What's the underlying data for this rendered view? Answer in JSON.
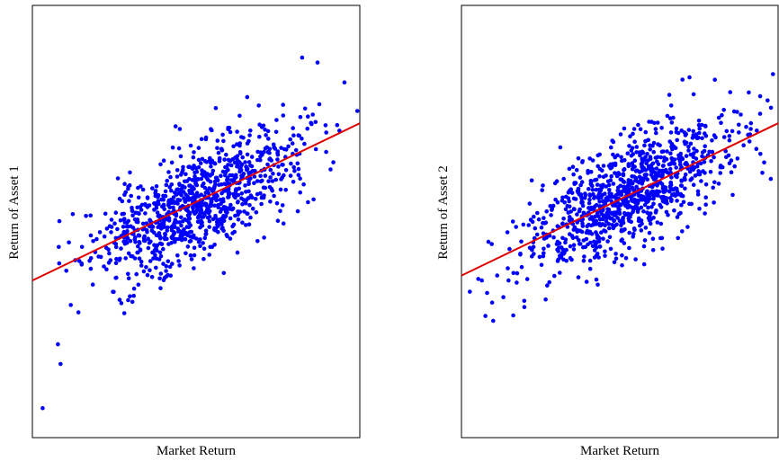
{
  "chart_data": [
    {
      "type": "scatter",
      "xlabel": "Market Return",
      "ylabel": "Return of Asset 1",
      "xlim": [
        -3.2,
        3.2
      ],
      "ylim": [
        -4.6,
        4.2
      ],
      "grid": false,
      "point_color": "#0000ff",
      "line_color": "#e00000",
      "fit_line": {
        "slope": 0.5,
        "intercept": 0.2
      },
      "n_points": 1000,
      "noise_sd": 0.55,
      "seed": 11,
      "outliers": [
        [
          -3.0,
          -4.0
        ],
        [
          -2.7,
          -2.7
        ],
        [
          -2.65,
          -3.1
        ],
        [
          -2.45,
          -1.9
        ],
        [
          -2.3,
          -2.05
        ],
        [
          3.15,
          2.05
        ]
      ]
    },
    {
      "type": "scatter",
      "xlabel": "Market Return",
      "ylabel": "Return of Asset 2",
      "xlim": [
        -3.2,
        3.0
      ],
      "ylim": [
        -4.6,
        4.2
      ],
      "grid": false,
      "point_color": "#0000ff",
      "line_color": "#e00000",
      "fit_line": {
        "slope": 0.5,
        "intercept": 0.3
      },
      "n_points": 1000,
      "noise_sd": 0.55,
      "seed": 23,
      "outliers": [
        [
          -2.8,
          -1.4
        ],
        [
          -2.6,
          -1.85
        ],
        [
          -2.5,
          -1.3
        ],
        [
          2.9,
          2.8
        ],
        [
          2.65,
          2.35
        ]
      ]
    }
  ]
}
